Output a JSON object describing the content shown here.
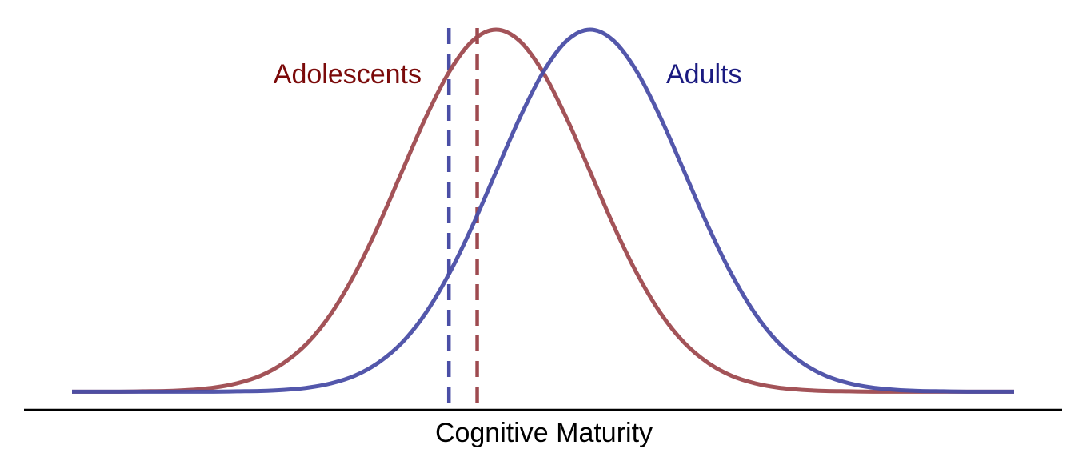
{
  "chart_data": {
    "type": "line",
    "xlabel": "Cognitive Maturity",
    "x": [
      0,
      2.5,
      5,
      7.5,
      10,
      12.5,
      15,
      17.5,
      20,
      22.5,
      25,
      27.5,
      30,
      32.5,
      35,
      37.5,
      40,
      42.5,
      45,
      47.5,
      50,
      52.5,
      55,
      57.5,
      60,
      62.5,
      65,
      67.5,
      70,
      72.5,
      75,
      77.5,
      80,
      82.5,
      85,
      87.5,
      90,
      92.5,
      95,
      97.5,
      100
    ],
    "series": [
      {
        "name": "Adolescents",
        "color": "#9e4a4f",
        "label_color": "#7b0a0a",
        "values": [
          0,
          0,
          0,
          0.001,
          0.002,
          0.005,
          0.011,
          0.023,
          0.044,
          0.08,
          0.135,
          0.216,
          0.325,
          0.458,
          0.607,
          0.755,
          0.882,
          0.969,
          1,
          0.969,
          0.882,
          0.755,
          0.607,
          0.458,
          0.325,
          0.216,
          0.135,
          0.08,
          0.044,
          0.023,
          0.011,
          0.005,
          0.002,
          0.001,
          0,
          0,
          0,
          0,
          0,
          0,
          0
        ]
      },
      {
        "name": "Adults",
        "color": "#4a4ea6",
        "label_color": "#1a1a80",
        "values": [
          0,
          0,
          0,
          0,
          0,
          0,
          0,
          0.001,
          0.002,
          0.005,
          0.011,
          0.023,
          0.044,
          0.08,
          0.135,
          0.216,
          0.325,
          0.458,
          0.607,
          0.755,
          0.882,
          0.969,
          1,
          0.969,
          0.882,
          0.755,
          0.607,
          0.458,
          0.325,
          0.216,
          0.135,
          0.08,
          0.044,
          0.023,
          0.011,
          0.005,
          0.002,
          0.001,
          0,
          0,
          0
        ]
      }
    ],
    "reference_lines": [
      {
        "x": 40,
        "color": "#4a4ea6"
      },
      {
        "x": 43,
        "color": "#9e4a4f"
      }
    ],
    "xlim": [
      0,
      100
    ],
    "ylim": [
      -0.05,
      1
    ]
  }
}
